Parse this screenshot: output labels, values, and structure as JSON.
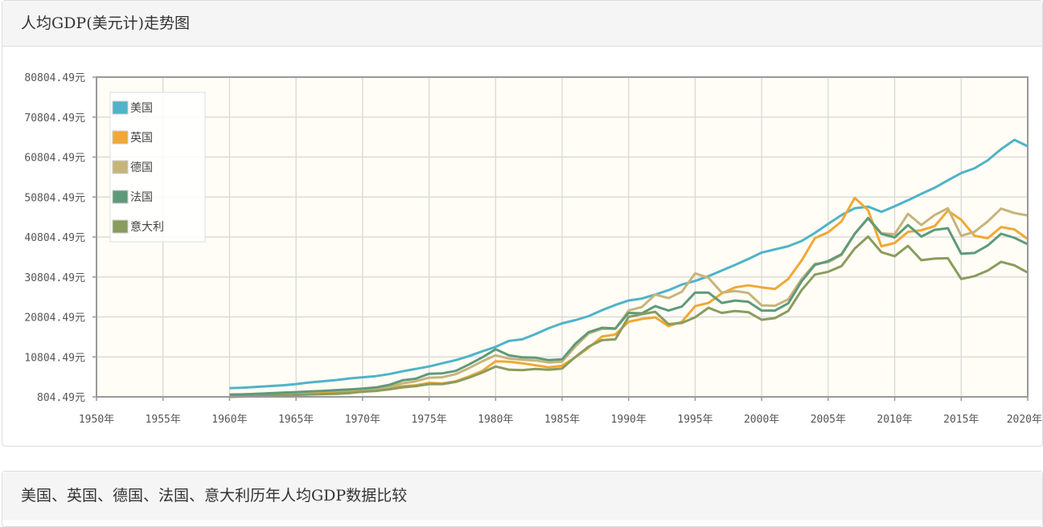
{
  "panels": {
    "chart_title": "人均GDP(美元计)走势图",
    "table_title": "美国、英国、德国、法国、意大利历年人均GDP数据比较"
  },
  "colors": {
    "plot_bg": "#fffdf5",
    "grid": "#d6d6d6",
    "axis": "#999999"
  },
  "chart_data": {
    "type": "line",
    "xlim": [
      1950,
      2020
    ],
    "ylim": [
      804.49,
      80804.49
    ],
    "y_ticks": [
      804.49,
      10804.49,
      20804.49,
      30804.49,
      40804.49,
      50804.49,
      60804.49,
      70804.49,
      80804.49
    ],
    "y_tick_labels": [
      "804.49元",
      "10804.49元",
      "20804.49元",
      "30804.49元",
      "40804.49元",
      "50804.49元",
      "60804.49元",
      "70804.49元",
      "80804.49元"
    ],
    "x_ticks": [
      1950,
      1955,
      1960,
      1965,
      1970,
      1975,
      1980,
      1985,
      1990,
      1995,
      2000,
      2005,
      2010,
      2015,
      2020
    ],
    "x_tick_labels": [
      "1950年",
      "1955年",
      "1960年",
      "1965年",
      "1970年",
      "1975年",
      "1980年",
      "1985年",
      "1990年",
      "1995年",
      "2000年",
      "2005年",
      "2010年",
      "2015年",
      "2020年"
    ],
    "grid": true,
    "legend_position": "top-left",
    "x": [
      1960,
      1961,
      1962,
      1963,
      1964,
      1965,
      1966,
      1967,
      1968,
      1969,
      1970,
      1971,
      1972,
      1973,
      1974,
      1975,
      1976,
      1977,
      1978,
      1979,
      1980,
      1981,
      1982,
      1983,
      1984,
      1985,
      1986,
      1987,
      1988,
      1989,
      1990,
      1991,
      1992,
      1993,
      1994,
      1995,
      1996,
      1997,
      1998,
      1999,
      2000,
      2001,
      2002,
      2003,
      2004,
      2005,
      2006,
      2007,
      2008,
      2009,
      2010,
      2011,
      2012,
      2013,
      2014,
      2015,
      2016,
      2017,
      2018,
      2019,
      2020
    ],
    "series": [
      {
        "name": "美国",
        "color": "#4fb3c9",
        "values": [
          3000,
          3100,
          3300,
          3500,
          3700,
          4000,
          4400,
          4700,
          5000,
          5400,
          5700,
          6000,
          6500,
          7200,
          7800,
          8400,
          9200,
          10000,
          11000,
          12200,
          13300,
          14800,
          15200,
          16500,
          18000,
          19200,
          20000,
          21000,
          22500,
          23800,
          24900,
          25400,
          26400,
          27500,
          28900,
          29800,
          31000,
          32400,
          33800,
          35300,
          36900,
          37700,
          38500,
          39800,
          41800,
          44100,
          46300,
          48000,
          48400,
          47100,
          48500,
          50000,
          51600,
          53100,
          55000,
          56800,
          58000,
          60000,
          62800,
          65100,
          63500
        ]
      },
      {
        "name": "英国",
        "color": "#f0a836",
        "values": [
          1400,
          1450,
          1520,
          1600,
          1750,
          1900,
          2000,
          2100,
          1950,
          2150,
          2350,
          2650,
          3050,
          3450,
          3700,
          4300,
          4150,
          4700,
          5900,
          7300,
          9700,
          9600,
          9200,
          8700,
          8200,
          8600,
          10700,
          13100,
          15900,
          16400,
          19600,
          20300,
          20700,
          18500,
          19600,
          23500,
          24300,
          26700,
          28200,
          28700,
          28200,
          27800,
          30300,
          34900,
          40500,
          42000,
          44700,
          50600,
          47500,
          38500,
          39300,
          42100,
          42500,
          43500,
          47400,
          45100,
          41100,
          40500,
          43300,
          42700,
          40300
        ]
      },
      {
        "name": "德国",
        "color": "#c7b47b",
        "values": [
          1000,
          1050,
          1100,
          1200,
          1250,
          1300,
          1400,
          1450,
          1500,
          1700,
          2300,
          2800,
          3300,
          4200,
          4700,
          5600,
          5700,
          6500,
          8000,
          9700,
          11200,
          10400,
          10100,
          9900,
          9400,
          9600,
          13400,
          16700,
          17800,
          17800,
          22400,
          23300,
          26400,
          25500,
          27100,
          31700,
          30600,
          26900,
          27300,
          26800,
          23700,
          23600,
          25200,
          30300,
          34100,
          34500,
          36300,
          41600,
          45600,
          41700,
          41500,
          46600,
          43800,
          46300,
          48000,
          41100,
          42100,
          44700,
          47900,
          46800,
          46200
        ]
      },
      {
        "name": "法国",
        "color": "#5e9a7a",
        "values": [
          1350,
          1400,
          1550,
          1700,
          1850,
          2000,
          2150,
          2300,
          2500,
          2650,
          2850,
          3150,
          3800,
          4950,
          5350,
          6600,
          6700,
          7300,
          8900,
          10700,
          12700,
          11200,
          10700,
          10600,
          10000,
          10200,
          14100,
          17000,
          18100,
          17900,
          21800,
          21700,
          23500,
          22400,
          23400,
          26900,
          26900,
          24300,
          24900,
          24600,
          22400,
          22400,
          24200,
          29700,
          33800,
          34800,
          36500,
          41600,
          45500,
          41600,
          40700,
          43800,
          40900,
          42600,
          43000,
          36600,
          36800,
          38700,
          41600,
          40600,
          39000
        ]
      },
      {
        "name": "意大利",
        "color": "#8a9c5e",
        "values": [
          800,
          880,
          960,
          1100,
          1200,
          1280,
          1380,
          1500,
          1620,
          1780,
          2100,
          2300,
          2700,
          3200,
          3500,
          4000,
          4000,
          4550,
          5600,
          6900,
          8400,
          7600,
          7500,
          7800,
          7600,
          7900,
          10800,
          13400,
          15000,
          15200,
          20800,
          21500,
          22100,
          19000,
          19300,
          20700,
          23100,
          21800,
          22300,
          22000,
          20100,
          20500,
          22300,
          27500,
          31400,
          32100,
          33500,
          37900,
          40900,
          37000,
          36000,
          38600,
          35000,
          35400,
          35500,
          30300,
          31000,
          32400,
          34600,
          33700,
          31900
        ]
      }
    ]
  }
}
